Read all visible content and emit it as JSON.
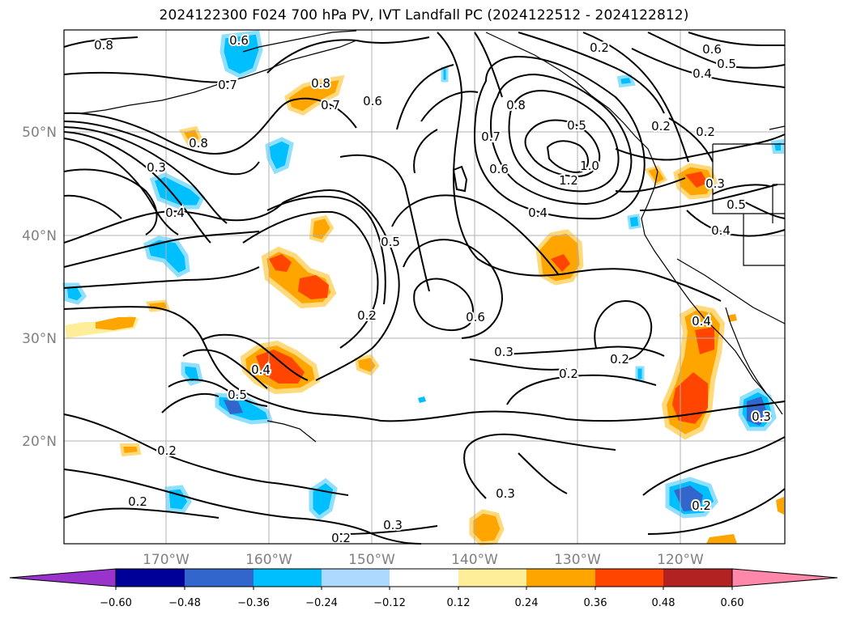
{
  "title": "2024122300 F024 700 hPa PV, IVT Landfall PC (2024122512 - 2024122812)",
  "lat_labels": [
    "50°N",
    "40°N",
    "30°N",
    "20°N"
  ],
  "lon_labels": [
    "170°W",
    "160°W",
    "150°W",
    "140°W",
    "130°W",
    "120°W"
  ],
  "contour_labels": [
    "0.8",
    "0.6",
    "0.7",
    "0.8",
    "0.7",
    "0.6",
    "0.8",
    "0.3",
    "0.4",
    "0.5",
    "0.2",
    "0.5",
    "0.4",
    "0.2",
    "0.2",
    "0.3",
    "0.2",
    "0.2",
    "0.2",
    "0.3",
    "0.6",
    "0.3",
    "0.2",
    "0.2",
    "0.8",
    "0.7",
    "0.6",
    "0.5",
    "1.0",
    "1.2",
    "0.4",
    "0.2",
    "0.6",
    "0.5",
    "0.4",
    "0.2",
    "0.3",
    "0.5",
    "0.4",
    "0.4",
    "0.3",
    "0.2"
  ],
  "colorbar": {
    "colors": [
      "#9933cc",
      "#000099",
      "#3366cc",
      "#00bfff",
      "#add8ff",
      "#ffffff",
      "#ffee99",
      "#ffa500",
      "#ff4500",
      "#b22222",
      "#ff88aa"
    ],
    "ticks": [
      "−0.60",
      "−0.48",
      "−0.36",
      "−0.24",
      "−0.12",
      "0.12",
      "0.24",
      "0.36",
      "0.48",
      "0.60"
    ]
  }
}
